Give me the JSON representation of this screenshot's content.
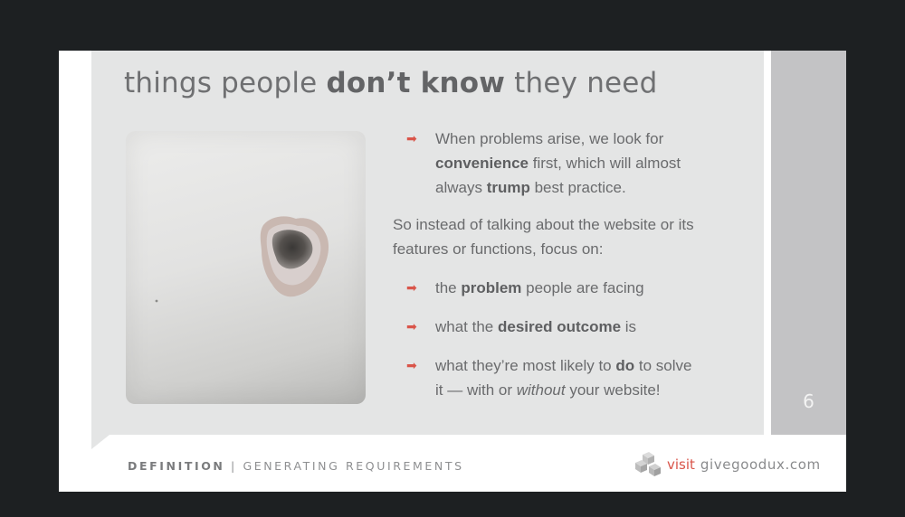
{
  "slide": {
    "title_part1": "things people ",
    "title_bold": "don’t know",
    "title_part2": " they need",
    "page_number": "6",
    "bullet1": {
      "l1": "When problems arise, we look for",
      "l2_bold": "convenience",
      "l2_rest": " first, which will almost",
      "l3_pre": "always ",
      "l3_bold": "trump",
      "l3_rest": " best practice."
    },
    "paragraph": {
      "l1": "So instead of talking about the website or its",
      "l2": "features or functions, focus on:"
    },
    "bullet2": {
      "pre": "the ",
      "bold": "problem",
      "rest": " people are facing"
    },
    "bullet3": {
      "pre": "what the ",
      "bold": "desired outcome",
      "rest": " is"
    },
    "bullet4": {
      "l1_pre": "what they’re most likely to ",
      "l1_bold": "do",
      "l1_rest": " to solve",
      "l2_pre": "it — with or ",
      "l2_italic": "without",
      "l2_rest": " your website!"
    }
  },
  "footer": {
    "section_bold": "DEFINITION",
    "section_rest": " | GENERATING REQUIREMENTS",
    "visit": "visit",
    "site": "givegoodux.com"
  },
  "icons": {
    "bullet": "arrow-right-icon",
    "logo": "cube-logo-icon"
  },
  "colors": {
    "accent": "#d9554a",
    "panel": "#e4e5e5",
    "sidebar": "#c3c3c5",
    "background": "#1d2022"
  }
}
